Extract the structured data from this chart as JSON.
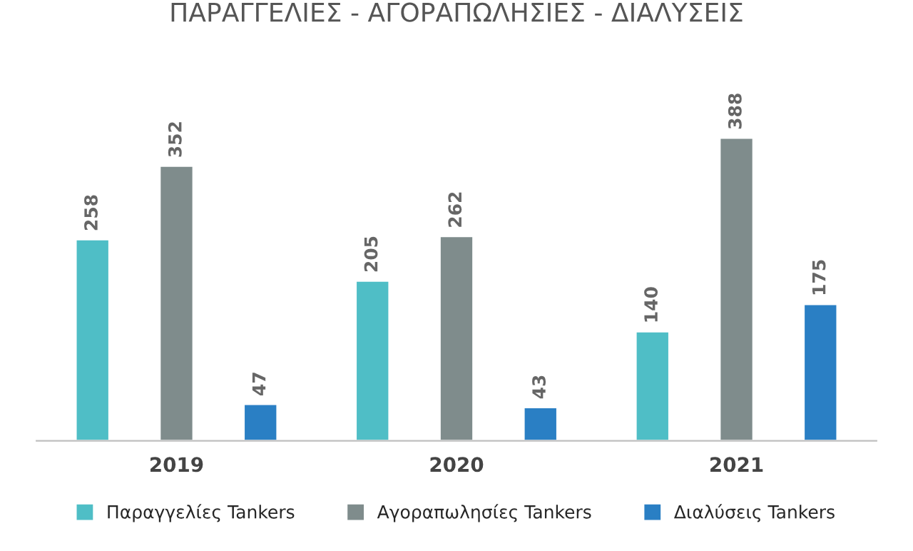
{
  "chart_data": {
    "type": "bar",
    "title": "ΠΑΡΑΓΓΕΛΙΕΣ - ΑΓΟΡΑΠΩΛΗΣΙΕΣ - ΔΙΑΛΥΣΕΙΣ",
    "categories": [
      "2019",
      "2020",
      "2021"
    ],
    "series": [
      {
        "name": "Παραγγελίες Tankers",
        "color": "#4fbec6",
        "values": [
          258,
          205,
          140
        ]
      },
      {
        "name": "Αγοραπωλησίες Tankers",
        "color": "#7f8c8c",
        "values": [
          352,
          262,
          388
        ]
      },
      {
        "name": "Διαλύσεις Tankers",
        "color": "#2a7fc4",
        "values": [
          47,
          43,
          175
        ]
      }
    ],
    "data_labels": true,
    "legend": "bottom",
    "grid": false
  }
}
